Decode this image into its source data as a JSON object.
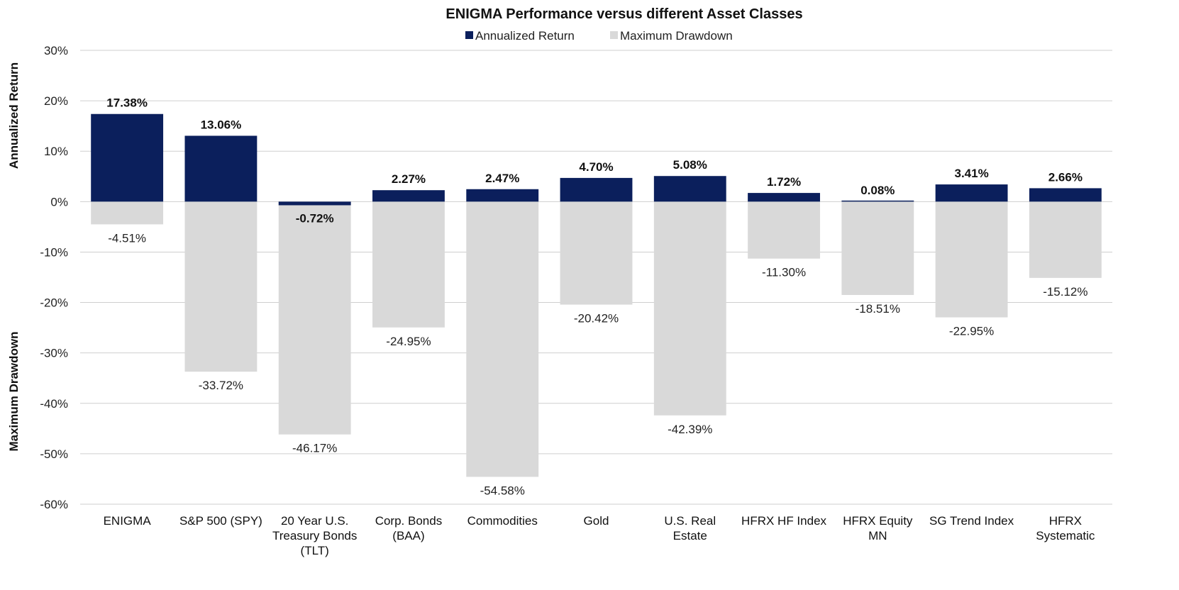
{
  "chart_data": {
    "type": "bar",
    "title": "ENIGMA Performance versus different Asset Classes",
    "categories": [
      [
        "ENIGMA"
      ],
      [
        "S&P 500 (SPY)"
      ],
      [
        "20 Year U.S.",
        "Treasury Bonds",
        "(TLT)"
      ],
      [
        "Corp. Bonds",
        "(BAA)"
      ],
      [
        "Commodities"
      ],
      [
        "Gold"
      ],
      [
        "U.S. Real",
        "Estate"
      ],
      [
        "HFRX HF Index"
      ],
      [
        "HFRX Equity",
        "MN"
      ],
      [
        "SG Trend Index"
      ],
      [
        "HFRX",
        "Systematic"
      ]
    ],
    "series": [
      {
        "name": "Annualized Return",
        "color": "#0b1f5c",
        "values": [
          17.38,
          13.06,
          -0.72,
          2.27,
          2.47,
          4.7,
          5.08,
          1.72,
          0.08,
          3.41,
          2.66
        ],
        "labels": [
          "17.38%",
          "13.06%",
          "-0.72%",
          "2.27%",
          "2.47%",
          "4.70%",
          "5.08%",
          "1.72%",
          "0.08%",
          "3.41%",
          "2.66%"
        ]
      },
      {
        "name": "Maximum Drawdown",
        "color": "#d9d9d9",
        "values": [
          -4.51,
          -33.72,
          -46.17,
          -24.95,
          -54.58,
          -20.42,
          -42.39,
          -11.3,
          -18.51,
          -22.95,
          -15.12
        ],
        "labels": [
          "-4.51%",
          "-33.72%",
          "-46.17%",
          "-24.95%",
          "-54.58%",
          "-20.42%",
          "-42.39%",
          "-11.30%",
          "-18.51%",
          "-22.95%",
          "-15.12%"
        ]
      }
    ],
    "ylim": [
      -60,
      30
    ],
    "yticks": [
      30,
      20,
      10,
      0,
      -10,
      -20,
      -30,
      -40,
      -50,
      -60
    ],
    "ytick_labels": [
      "30%",
      "20%",
      "10%",
      "0%",
      "-10%",
      "-20%",
      "-30%",
      "-40%",
      "-50%",
      "-60%"
    ],
    "ylabel_upper": "Annualized Return",
    "ylabel_lower": "Maximum Drawdown",
    "legend_position": "top",
    "grid": true
  }
}
